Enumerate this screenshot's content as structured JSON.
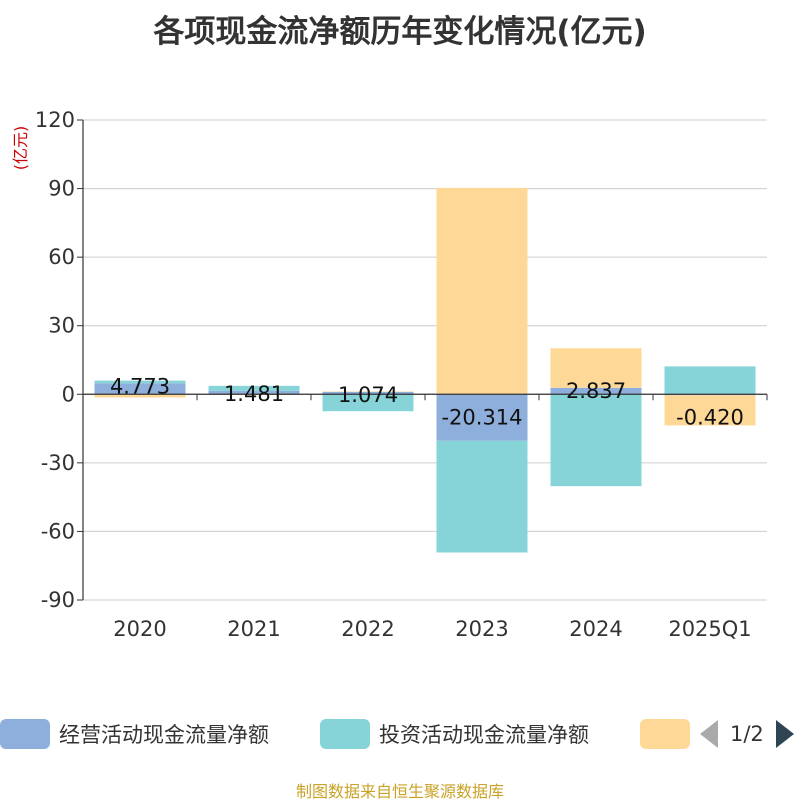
{
  "chart_data": {
    "type": "bar",
    "stacked": true,
    "title": "各项现金流净额历年变化情况(亿元)",
    "ylabel": "(亿元)",
    "categories": [
      "2020",
      "2021",
      "2022",
      "2023",
      "2024",
      "2025Q1"
    ],
    "ylim": [
      -90,
      120
    ],
    "yticks": [
      120,
      90,
      60,
      30,
      0,
      -30,
      -60,
      -90
    ],
    "grid": true,
    "series": [
      {
        "name": "经营活动现金流量净额",
        "color": "#8eaedb",
        "values": [
          4.773,
          1.481,
          1.074,
          -20.314,
          2.837,
          -0.42
        ]
      },
      {
        "name": "投资活动现金流量净额",
        "color": "#87d4d8",
        "values": [
          1.2,
          2.2,
          -7.4,
          -48.9,
          -40.2,
          12.2
        ]
      },
      {
        "name": "",
        "color": "#fdd897",
        "values": [
          -1.4,
          -0.3,
          0.2,
          90.3,
          17.3,
          -13.2
        ]
      }
    ],
    "data_labels": [
      "4.773",
      "1.481",
      "1.074",
      "-20.314",
      "2.837",
      "-0.420"
    ],
    "legend_position": "bottom"
  },
  "legend": {
    "page": "1/2"
  },
  "source": "制图数据来自恒生聚源数据库"
}
